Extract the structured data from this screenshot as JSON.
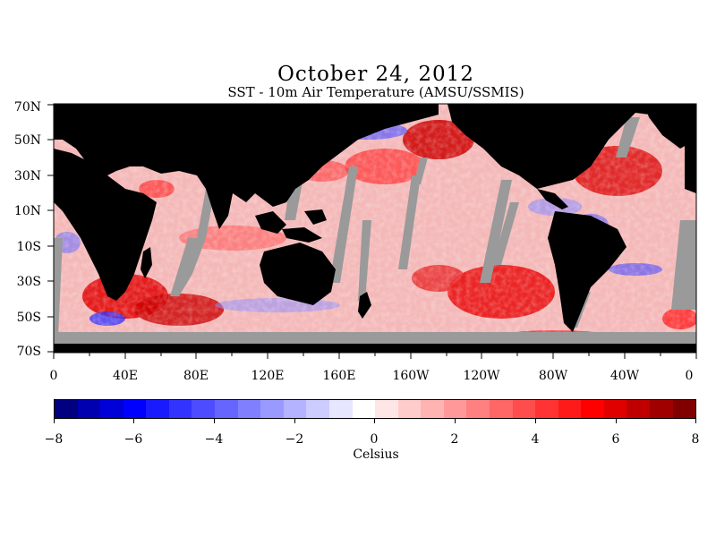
{
  "title": "October 24, 2012",
  "subtitle": "SST - 10m Air Temperature (AMSU/SSMIS)",
  "map": {
    "lat_labels": [
      "70N",
      "50N",
      "30N",
      "10N",
      "10S",
      "30S",
      "50S",
      "70S"
    ],
    "lon_labels": [
      "0",
      "40E",
      "80E",
      "120E",
      "160E",
      "160W",
      "120W",
      "80W",
      "40W",
      "0"
    ],
    "colors": {
      "land": "#000000",
      "no_data": "#9a9a9a",
      "ocean_base": "#f2b0b0"
    }
  },
  "colorbar": {
    "min": -8,
    "max": 8,
    "tick_labels": [
      "-8",
      "-6",
      "-4",
      "-2",
      "0",
      "2",
      "4",
      "6",
      "8"
    ],
    "units": "Celsius",
    "colors": [
      "#000080",
      "#0000b0",
      "#0000d8",
      "#0000ff",
      "#1a1aff",
      "#3333ff",
      "#4d4dff",
      "#6666ff",
      "#8080ff",
      "#9999ff",
      "#b3b3ff",
      "#ccccff",
      "#e6e6ff",
      "#ffffff",
      "#ffe6e6",
      "#ffcccc",
      "#ffb3b3",
      "#ff9999",
      "#ff8080",
      "#ff6666",
      "#ff4d4d",
      "#ff3333",
      "#ff1a1a",
      "#ff0000",
      "#e00000",
      "#c00000",
      "#a00000",
      "#800000"
    ]
  }
}
